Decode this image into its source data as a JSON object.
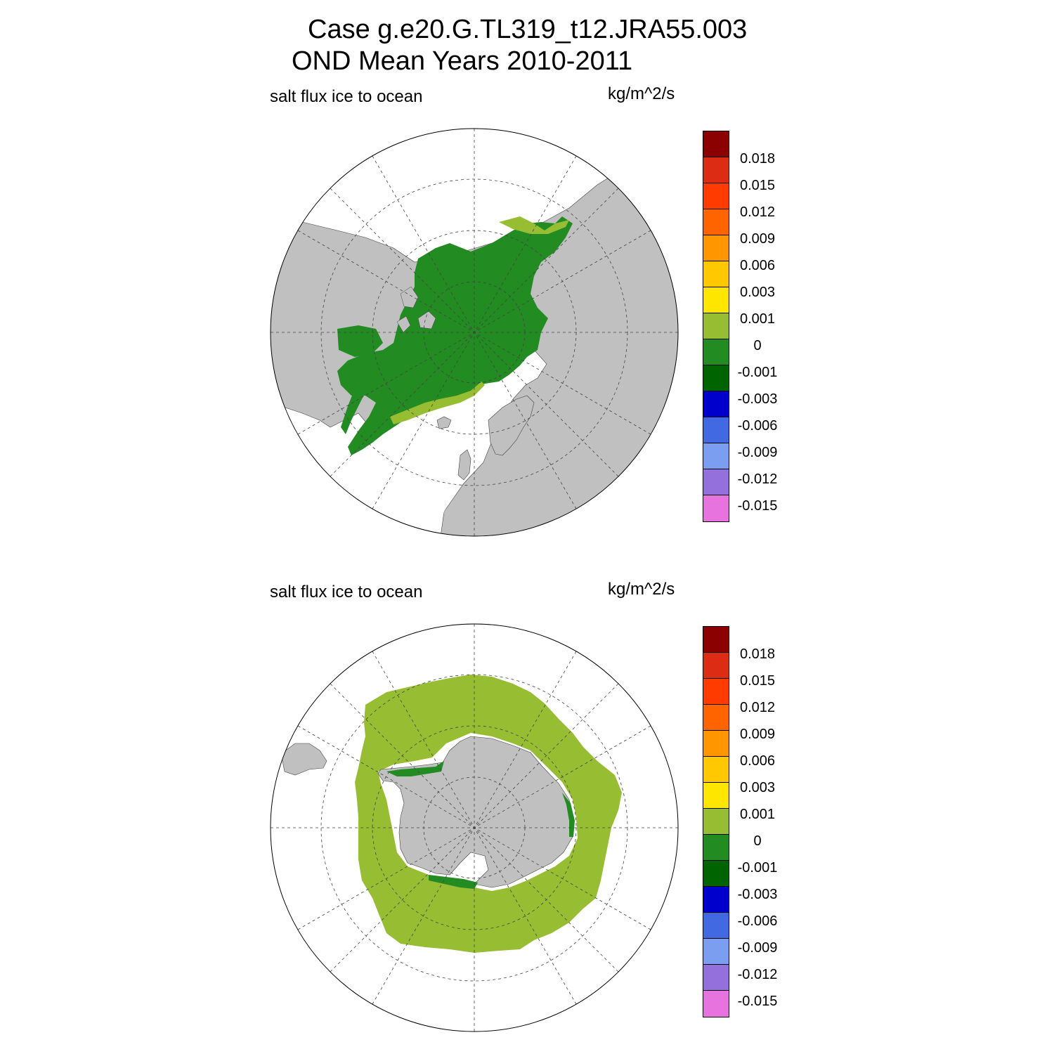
{
  "title": {
    "line1": "Case g.e20.G.TL319_t12.JRA55.003",
    "line2": "OND Mean   Years 2010-2011"
  },
  "panels": [
    {
      "id": "north",
      "left_label": "salt flux ice to ocean",
      "right_label": "kg/m^2/s"
    },
    {
      "id": "south",
      "left_label": "salt flux ice to ocean",
      "right_label": "kg/m^2/s"
    }
  ],
  "colorbar": {
    "colors": [
      "#8b0000",
      "#dc2d14",
      "#ff3b00",
      "#ff6400",
      "#ff9600",
      "#ffc800",
      "#ffe600",
      "#97bd32",
      "#228b22",
      "#006400",
      "#0000cd",
      "#4169e1",
      "#7b9ef0",
      "#9370db",
      "#e673de"
    ],
    "labels": [
      "0.018",
      "0.015",
      "0.012",
      "0.009",
      "0.006",
      "0.003",
      "0.001",
      "0",
      "-0.001",
      "-0.003",
      "-0.006",
      "-0.009",
      "-0.012",
      "-0.015"
    ]
  },
  "colors": {
    "land": "#c0c0c0",
    "ocean": "#ffffff",
    "ice_negative": "#228b22",
    "ice_near_zero": "#97bd32",
    "ice_dark_negative": "#006400"
  }
}
